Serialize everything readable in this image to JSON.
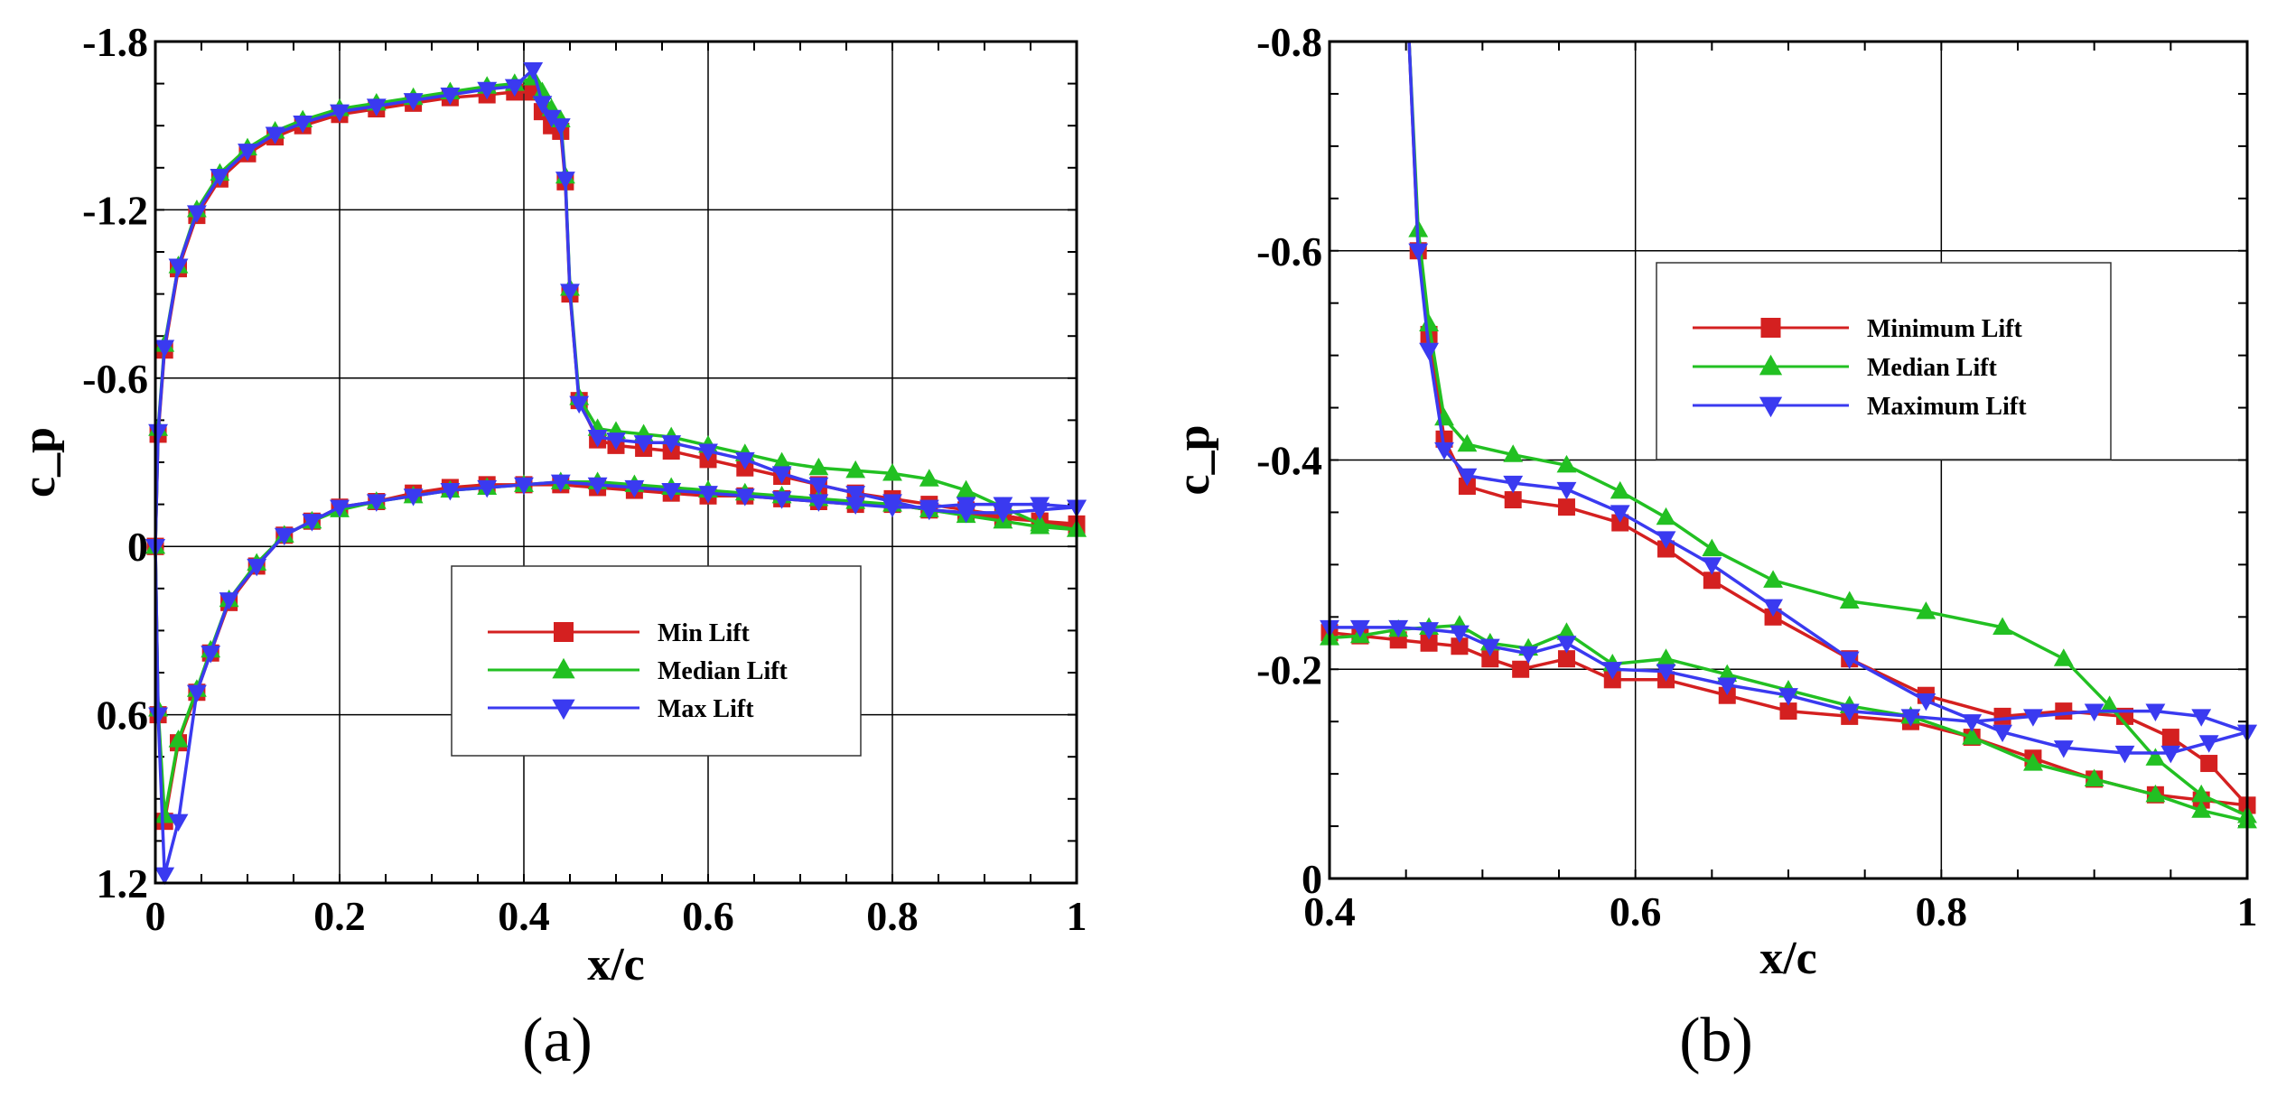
{
  "chart_data": [
    {
      "type": "line",
      "caption": "(a)",
      "xlabel": "x/c",
      "ylabel": "c_p",
      "xlim": [
        0,
        1
      ],
      "ylim": [
        1.2,
        -1.8
      ],
      "xticks": [
        "0",
        "0.2",
        "0.4",
        "0.6",
        "0.8",
        "1"
      ],
      "yticks": [
        "1.2",
        "0.6",
        "0",
        "-0.6",
        "-1.2",
        "-1.8"
      ],
      "xtick_values": [
        0,
        0.2,
        0.4,
        0.6,
        0.8,
        1
      ],
      "ytick_values": [
        1.2,
        0.6,
        0,
        -0.6,
        -1.2,
        -1.8
      ],
      "grid": true,
      "legend_position": "center-right",
      "series": [
        {
          "name": "Min Lift",
          "color": "#d42020",
          "marker": "square",
          "upper": {
            "x": [
              0.0,
              0.003,
              0.01,
              0.025,
              0.045,
              0.07,
              0.1,
              0.13,
              0.16,
              0.2,
              0.24,
              0.28,
              0.32,
              0.36,
              0.39,
              0.41,
              0.42,
              0.43,
              0.44,
              0.445,
              0.45,
              0.46,
              0.48,
              0.5,
              0.53,
              0.56,
              0.6,
              0.64,
              0.68,
              0.72,
              0.76,
              0.8,
              0.84,
              0.88,
              0.92,
              0.96,
              1.0
            ],
            "y": [
              0.0,
              -0.4,
              -0.7,
              -0.99,
              -1.18,
              -1.31,
              -1.4,
              -1.46,
              -1.5,
              -1.54,
              -1.56,
              -1.58,
              -1.6,
              -1.61,
              -1.62,
              -1.62,
              -1.55,
              -1.5,
              -1.48,
              -1.3,
              -0.9,
              -0.52,
              -0.38,
              -0.36,
              -0.35,
              -0.34,
              -0.31,
              -0.28,
              -0.25,
              -0.22,
              -0.19,
              -0.17,
              -0.15,
              -0.13,
              -0.11,
              -0.09,
              -0.07
            ]
          },
          "lower": {
            "x": [
              0.0,
              0.003,
              0.01,
              0.025,
              0.045,
              0.06,
              0.08,
              0.11,
              0.14,
              0.17,
              0.2,
              0.24,
              0.28,
              0.32,
              0.36,
              0.4,
              0.44,
              0.48,
              0.52,
              0.56,
              0.6,
              0.64,
              0.68,
              0.72,
              0.76,
              0.8,
              0.84,
              0.88,
              0.92,
              0.96,
              1.0
            ],
            "y": [
              0.0,
              0.6,
              0.98,
              0.7,
              0.52,
              0.38,
              0.2,
              0.07,
              -0.04,
              -0.09,
              -0.14,
              -0.16,
              -0.19,
              -0.21,
              -0.22,
              -0.22,
              -0.22,
              -0.21,
              -0.2,
              -0.19,
              -0.18,
              -0.18,
              -0.17,
              -0.16,
              -0.15,
              -0.15,
              -0.13,
              -0.12,
              -0.1,
              -0.09,
              -0.08
            ]
          }
        },
        {
          "name": "Median Lift",
          "color": "#22c022",
          "marker": "triangle-up",
          "upper": {
            "x": [
              0.0,
              0.003,
              0.01,
              0.025,
              0.045,
              0.07,
              0.1,
              0.13,
              0.16,
              0.2,
              0.24,
              0.28,
              0.32,
              0.36,
              0.39,
              0.41,
              0.42,
              0.43,
              0.44,
              0.445,
              0.45,
              0.46,
              0.48,
              0.5,
              0.53,
              0.56,
              0.6,
              0.64,
              0.68,
              0.72,
              0.76,
              0.8,
              0.84,
              0.88,
              0.92,
              0.96,
              1.0
            ],
            "y": [
              0.0,
              -0.42,
              -0.72,
              -1.0,
              -1.2,
              -1.33,
              -1.42,
              -1.48,
              -1.52,
              -1.56,
              -1.58,
              -1.6,
              -1.62,
              -1.64,
              -1.65,
              -1.67,
              -1.62,
              -1.56,
              -1.52,
              -1.32,
              -0.92,
              -0.53,
              -0.42,
              -0.41,
              -0.4,
              -0.39,
              -0.36,
              -0.33,
              -0.3,
              -0.28,
              -0.27,
              -0.26,
              -0.24,
              -0.2,
              -0.14,
              -0.08,
              -0.06
            ]
          },
          "lower": {
            "x": [
              0.0,
              0.003,
              0.01,
              0.025,
              0.045,
              0.06,
              0.08,
              0.11,
              0.14,
              0.17,
              0.2,
              0.24,
              0.28,
              0.32,
              0.36,
              0.4,
              0.44,
              0.48,
              0.52,
              0.56,
              0.6,
              0.64,
              0.68,
              0.72,
              0.76,
              0.8,
              0.84,
              0.88,
              0.92,
              0.96,
              1.0
            ],
            "y": [
              0.0,
              0.58,
              0.96,
              0.69,
              0.51,
              0.37,
              0.19,
              0.06,
              -0.04,
              -0.09,
              -0.13,
              -0.16,
              -0.18,
              -0.2,
              -0.21,
              -0.22,
              -0.23,
              -0.23,
              -0.22,
              -0.21,
              -0.2,
              -0.19,
              -0.18,
              -0.17,
              -0.16,
              -0.15,
              -0.13,
              -0.11,
              -0.09,
              -0.07,
              -0.06
            ]
          }
        },
        {
          "name": "Max Lift",
          "color": "#3a3af0",
          "marker": "triangle-down",
          "upper": {
            "x": [
              0.0,
              0.003,
              0.01,
              0.025,
              0.045,
              0.07,
              0.1,
              0.13,
              0.16,
              0.2,
              0.24,
              0.28,
              0.32,
              0.36,
              0.39,
              0.41,
              0.42,
              0.43,
              0.44,
              0.445,
              0.45,
              0.46,
              0.48,
              0.5,
              0.53,
              0.56,
              0.6,
              0.64,
              0.68,
              0.72,
              0.76,
              0.8,
              0.84,
              0.88,
              0.92,
              0.96,
              1.0
            ],
            "y": [
              0.0,
              -0.41,
              -0.71,
              -1.0,
              -1.19,
              -1.32,
              -1.41,
              -1.47,
              -1.51,
              -1.55,
              -1.57,
              -1.59,
              -1.61,
              -1.63,
              -1.64,
              -1.7,
              -1.58,
              -1.53,
              -1.5,
              -1.31,
              -0.91,
              -0.51,
              -0.39,
              -0.38,
              -0.37,
              -0.37,
              -0.34,
              -0.31,
              -0.26,
              -0.22,
              -0.19,
              -0.16,
              -0.13,
              -0.12,
              -0.12,
              -0.13,
              -0.14
            ]
          },
          "lower": {
            "x": [
              0.0,
              0.003,
              0.01,
              0.025,
              0.045,
              0.06,
              0.08,
              0.11,
              0.14,
              0.17,
              0.2,
              0.24,
              0.28,
              0.32,
              0.36,
              0.4,
              0.44,
              0.48,
              0.52,
              0.56,
              0.6,
              0.64,
              0.68,
              0.72,
              0.76,
              0.8,
              0.84,
              0.88,
              0.92,
              0.96,
              1.0
            ],
            "y": [
              0.0,
              0.6,
              1.17,
              0.98,
              0.52,
              0.38,
              0.19,
              0.07,
              -0.04,
              -0.09,
              -0.14,
              -0.16,
              -0.18,
              -0.2,
              -0.21,
              -0.22,
              -0.23,
              -0.22,
              -0.21,
              -0.2,
              -0.19,
              -0.18,
              -0.17,
              -0.16,
              -0.15,
              -0.14,
              -0.14,
              -0.15,
              -0.15,
              -0.15,
              -0.14
            ]
          }
        }
      ]
    },
    {
      "type": "line",
      "caption": "(b)",
      "xlabel": "x/c",
      "ylabel": "c_p",
      "xlim": [
        0.4,
        1
      ],
      "ylim": [
        0,
        -0.8
      ],
      "xticks": [
        "0.4",
        "0.6",
        "0.8",
        "1"
      ],
      "yticks": [
        "0",
        "-0.2",
        "-0.4",
        "-0.6",
        "-0.8"
      ],
      "xtick_values": [
        0.4,
        0.6,
        0.8,
        1
      ],
      "ytick_values": [
        0,
        -0.2,
        -0.4,
        -0.6,
        -0.8
      ],
      "grid": true,
      "legend_position": "top-center",
      "series": [
        {
          "name": "Minimum Lift",
          "color": "#d42020",
          "marker": "square",
          "upper": {
            "x": [
              0.452,
              0.458,
              0.465,
              0.475,
              0.49,
              0.52,
              0.555,
              0.59,
              0.62,
              0.65,
              0.69,
              0.74,
              0.79,
              0.84,
              0.88,
              0.92,
              0.95,
              0.975,
              1.0
            ],
            "y": [
              -0.8,
              -0.6,
              -0.52,
              -0.42,
              -0.375,
              -0.362,
              -0.355,
              -0.34,
              -0.315,
              -0.285,
              -0.25,
              -0.21,
              -0.175,
              -0.155,
              -0.16,
              -0.155,
              -0.135,
              -0.11,
              -0.07
            ]
          },
          "lower": {
            "x": [
              0.4,
              0.42,
              0.445,
              0.465,
              0.485,
              0.505,
              0.525,
              0.555,
              0.585,
              0.62,
              0.66,
              0.7,
              0.74,
              0.78,
              0.82,
              0.86,
              0.9,
              0.94,
              0.97,
              1.0
            ],
            "y": [
              -0.235,
              -0.232,
              -0.228,
              -0.225,
              -0.222,
              -0.21,
              -0.2,
              -0.21,
              -0.19,
              -0.19,
              -0.175,
              -0.16,
              -0.155,
              -0.15,
              -0.135,
              -0.115,
              -0.095,
              -0.08,
              -0.075,
              -0.07
            ]
          }
        },
        {
          "name": "Median Lift",
          "color": "#22c022",
          "marker": "triangle-up",
          "upper": {
            "x": [
              0.452,
              0.458,
              0.465,
              0.475,
              0.49,
              0.52,
              0.555,
              0.59,
              0.62,
              0.65,
              0.69,
              0.74,
              0.79,
              0.84,
              0.88,
              0.91,
              0.94,
              0.97,
              1.0
            ],
            "y": [
              -0.8,
              -0.62,
              -0.53,
              -0.44,
              -0.415,
              -0.405,
              -0.395,
              -0.37,
              -0.345,
              -0.315,
              -0.285,
              -0.265,
              -0.255,
              -0.24,
              -0.21,
              -0.165,
              -0.115,
              -0.08,
              -0.06
            ]
          },
          "lower": {
            "x": [
              0.4,
              0.42,
              0.445,
              0.465,
              0.485,
              0.505,
              0.53,
              0.555,
              0.585,
              0.62,
              0.66,
              0.7,
              0.74,
              0.78,
              0.82,
              0.86,
              0.9,
              0.94,
              0.97,
              1.0
            ],
            "y": [
              -0.23,
              -0.232,
              -0.238,
              -0.24,
              -0.242,
              -0.225,
              -0.22,
              -0.235,
              -0.205,
              -0.21,
              -0.195,
              -0.18,
              -0.165,
              -0.155,
              -0.135,
              -0.11,
              -0.095,
              -0.08,
              -0.065,
              -0.055
            ]
          }
        },
        {
          "name": "Maximum Lift",
          "color": "#3a3af0",
          "marker": "triangle-down",
          "upper": {
            "x": [
              0.452,
              0.458,
              0.465,
              0.475,
              0.49,
              0.52,
              0.555,
              0.59,
              0.62,
              0.65,
              0.69,
              0.74,
              0.79,
              0.84,
              0.88,
              0.92,
              0.95,
              0.975,
              1.0
            ],
            "y": [
              -0.8,
              -0.6,
              -0.505,
              -0.41,
              -0.385,
              -0.378,
              -0.372,
              -0.35,
              -0.325,
              -0.3,
              -0.26,
              -0.21,
              -0.17,
              -0.14,
              -0.125,
              -0.12,
              -0.12,
              -0.13,
              -0.14
            ]
          },
          "lower": {
            "x": [
              0.4,
              0.42,
              0.445,
              0.465,
              0.485,
              0.505,
              0.53,
              0.555,
              0.585,
              0.62,
              0.66,
              0.7,
              0.74,
              0.78,
              0.82,
              0.86,
              0.9,
              0.94,
              0.97,
              1.0
            ],
            "y": [
              -0.24,
              -0.24,
              -0.24,
              -0.238,
              -0.235,
              -0.222,
              -0.215,
              -0.225,
              -0.2,
              -0.198,
              -0.185,
              -0.175,
              -0.16,
              -0.155,
              -0.15,
              -0.155,
              -0.16,
              -0.16,
              -0.155,
              -0.14
            ]
          }
        }
      ]
    }
  ]
}
